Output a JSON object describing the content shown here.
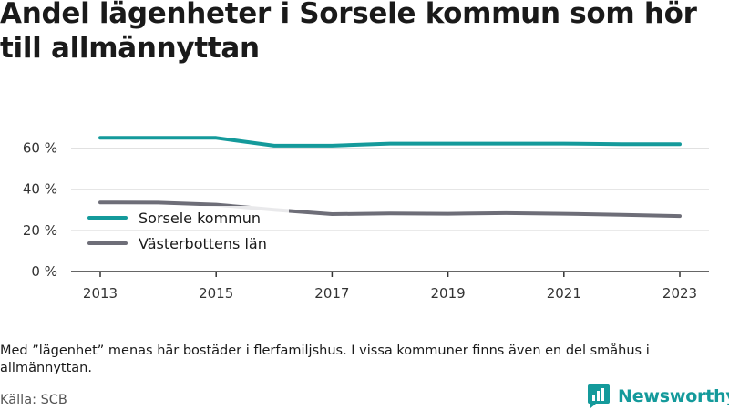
{
  "title": "Andel lägenheter i Sorsele kommun som hör till allmännyttan",
  "note": "Med ”lägenhet” menas här bostäder i flerfamiljshus. I vissa kommuner finns även en del småhus i allmännyttan.",
  "source": "Källa: SCB",
  "brand": {
    "name": "Newsworthy",
    "icon": "newsworthy-logo-icon",
    "color": "#149a9b"
  },
  "chart_data": {
    "type": "line",
    "x": [
      2013,
      2014,
      2015,
      2016,
      2017,
      2018,
      2019,
      2020,
      2021,
      2022,
      2023
    ],
    "xticks": [
      "2013",
      "2015",
      "2017",
      "2019",
      "2021",
      "2023"
    ],
    "yticks": [
      "0 %",
      "20 %",
      "40 %",
      "60 %"
    ],
    "ylim": [
      0,
      70
    ],
    "grid": true,
    "legend_position": "left",
    "series": [
      {
        "name": "Sorsele kommun",
        "color": "#149a9b",
        "values": [
          65,
          65,
          65,
          61.2,
          61.2,
          62.2,
          62.2,
          62.2,
          62.2,
          61.9,
          61.9
        ]
      },
      {
        "name": "Västerbottens län",
        "color": "#6e6e78",
        "values": [
          33.6,
          33.5,
          32.5,
          30,
          27.9,
          28.2,
          28.1,
          28.4,
          28.1,
          27.6,
          27
        ]
      }
    ]
  }
}
